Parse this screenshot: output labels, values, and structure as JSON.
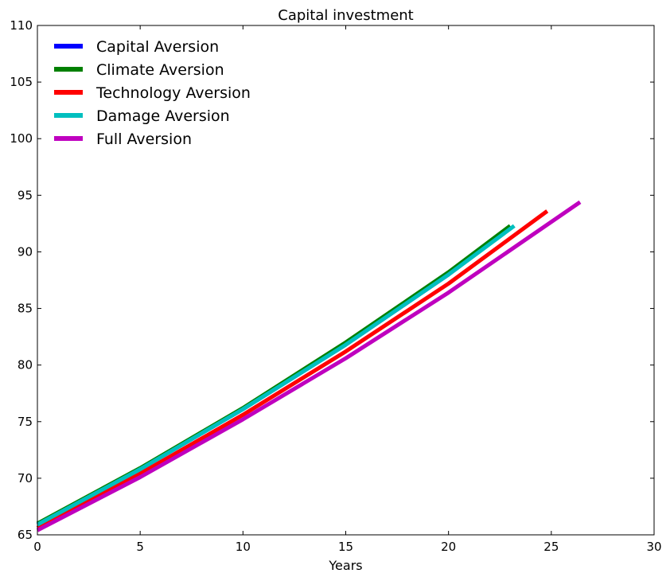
{
  "chart_data": {
    "type": "line",
    "title": "Capital investment",
    "xlabel": "Years",
    "ylabel": "",
    "xlim": [
      0,
      30
    ],
    "ylim": [
      65,
      110
    ],
    "xticks": [
      0,
      5,
      10,
      15,
      20,
      25,
      30
    ],
    "yticks": [
      65,
      70,
      75,
      80,
      85,
      90,
      95,
      100,
      105,
      110
    ],
    "grid": false,
    "legend_position": "top-left",
    "series": [
      {
        "name": "Capital Aversion",
        "color": "#0000ff",
        "line_width": 5,
        "x": [
          0,
          5,
          10,
          15,
          20,
          23
        ],
        "y": [
          65.9,
          70.8,
          76.1,
          81.8,
          88.0,
          92.1
        ]
      },
      {
        "name": "Climate Aversion",
        "color": "#008000",
        "line_width": 5,
        "x": [
          0,
          5,
          10,
          15,
          20,
          23
        ],
        "y": [
          66.0,
          70.9,
          76.2,
          82.0,
          88.2,
          92.3
        ]
      },
      {
        "name": "Technology Aversion",
        "color": "#ff0000",
        "line_width": 5,
        "x": [
          0,
          5,
          10,
          15,
          20,
          24.8
        ],
        "y": [
          65.6,
          70.4,
          75.6,
          81.2,
          87.2,
          93.6
        ]
      },
      {
        "name": "Damage Aversion",
        "color": "#00bfbf",
        "line_width": 5,
        "x": [
          0,
          5,
          10,
          15,
          20,
          23.2
        ],
        "y": [
          65.9,
          70.8,
          76.1,
          81.8,
          88.0,
          92.3
        ]
      },
      {
        "name": "Full Aversion",
        "color": "#bf00bf",
        "line_width": 5,
        "x": [
          0,
          5,
          10,
          15,
          20,
          26.4
        ],
        "y": [
          65.4,
          70.1,
          75.2,
          80.6,
          86.4,
          94.4
        ]
      }
    ]
  }
}
